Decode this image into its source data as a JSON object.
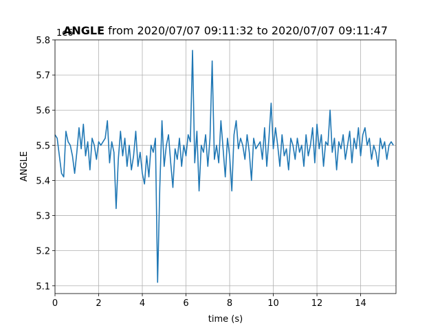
{
  "chart_data": {
    "type": "line",
    "title": {
      "bold": "ANGLE",
      "rest": " from 2020/07/07 09:11:32 to 2020/07/07 09:11:47"
    },
    "xlabel": "time (s)",
    "ylabel": "ANGLE",
    "offset_label": "1e6",
    "color": "#1f77b4",
    "grid": true,
    "xlim": [
      0,
      15.62
    ],
    "ylim": [
      5.078,
      5.8
    ],
    "xticks": [
      0,
      2,
      4,
      6,
      8,
      10,
      12,
      14
    ],
    "yticks": [
      5.1,
      5.2,
      5.3,
      5.4,
      5.5,
      5.6,
      5.7,
      5.8
    ],
    "x": [
      0,
      0.1,
      0.2,
      0.3,
      0.4,
      0.5,
      0.6,
      0.7,
      0.8,
      0.9,
      1,
      1.1,
      1.2,
      1.3,
      1.4,
      1.5,
      1.6,
      1.7,
      1.8,
      1.9,
      2,
      2.1,
      2.2,
      2.3,
      2.4,
      2.5,
      2.6,
      2.7,
      2.8,
      2.9,
      3,
      3.1,
      3.2,
      3.3,
      3.4,
      3.5,
      3.6,
      3.7,
      3.8,
      3.9,
      4,
      4.1,
      4.2,
      4.3,
      4.4,
      4.5,
      4.6,
      4.7,
      4.8,
      4.9,
      5,
      5.1,
      5.2,
      5.3,
      5.4,
      5.5,
      5.6,
      5.7,
      5.8,
      5.9,
      6,
      6.1,
      6.2,
      6.3,
      6.4,
      6.5,
      6.6,
      6.7,
      6.8,
      6.9,
      7,
      7.1,
      7.2,
      7.3,
      7.4,
      7.5,
      7.6,
      7.7,
      7.8,
      7.9,
      8,
      8.1,
      8.2,
      8.3,
      8.4,
      8.5,
      8.6,
      8.7,
      8.8,
      8.9,
      9,
      9.1,
      9.2,
      9.3,
      9.4,
      9.5,
      9.6,
      9.7,
      9.8,
      9.9,
      10,
      10.1,
      10.2,
      10.3,
      10.4,
      10.5,
      10.6,
      10.7,
      10.8,
      10.9,
      11,
      11.1,
      11.2,
      11.3,
      11.4,
      11.5,
      11.6,
      11.7,
      11.8,
      11.9,
      12,
      12.1,
      12.2,
      12.3,
      12.4,
      12.5,
      12.6,
      12.7,
      12.8,
      12.9,
      13,
      13.1,
      13.2,
      13.3,
      13.4,
      13.5,
      13.6,
      13.7,
      13.8,
      13.9,
      14,
      14.1,
      14.2,
      14.3,
      14.4,
      14.5,
      14.6,
      14.7,
      14.8,
      14.9,
      15,
      15.1,
      15.2,
      15.3,
      15.4,
      15.5
    ],
    "values": [
      5.53,
      5.52,
      5.47,
      5.42,
      5.41,
      5.54,
      5.51,
      5.5,
      5.47,
      5.42,
      5.48,
      5.55,
      5.49,
      5.56,
      5.47,
      5.51,
      5.43,
      5.52,
      5.5,
      5.46,
      5.51,
      5.5,
      5.51,
      5.52,
      5.57,
      5.45,
      5.51,
      5.48,
      5.32,
      5.46,
      5.54,
      5.47,
      5.52,
      5.44,
      5.5,
      5.43,
      5.47,
      5.54,
      5.44,
      5.48,
      5.42,
      5.39,
      5.47,
      5.41,
      5.5,
      5.48,
      5.52,
      5.11,
      5.38,
      5.57,
      5.44,
      5.5,
      5.53,
      5.45,
      5.38,
      5.49,
      5.46,
      5.52,
      5.44,
      5.5,
      5.47,
      5.53,
      5.51,
      5.77,
      5.45,
      5.54,
      5.37,
      5.5,
      5.48,
      5.53,
      5.44,
      5.52,
      5.74,
      5.46,
      5.5,
      5.45,
      5.57,
      5.49,
      5.41,
      5.52,
      5.47,
      5.37,
      5.53,
      5.57,
      5.49,
      5.52,
      5.5,
      5.46,
      5.53,
      5.48,
      5.4,
      5.52,
      5.49,
      5.5,
      5.51,
      5.46,
      5.55,
      5.44,
      5.52,
      5.62,
      5.49,
      5.55,
      5.5,
      5.44,
      5.53,
      5.47,
      5.49,
      5.43,
      5.52,
      5.5,
      5.46,
      5.52,
      5.48,
      5.5,
      5.44,
      5.53,
      5.47,
      5.5,
      5.55,
      5.45,
      5.56,
      5.49,
      5.53,
      5.44,
      5.51,
      5.5,
      5.6,
      5.48,
      5.52,
      5.43,
      5.51,
      5.49,
      5.53,
      5.46,
      5.5,
      5.54,
      5.45,
      5.52,
      5.49,
      5.55,
      5.47,
      5.53,
      5.55,
      5.5,
      5.52,
      5.46,
      5.5,
      5.48,
      5.44,
      5.52,
      5.49,
      5.51,
      5.46,
      5.5,
      5.51,
      5.5
    ]
  }
}
